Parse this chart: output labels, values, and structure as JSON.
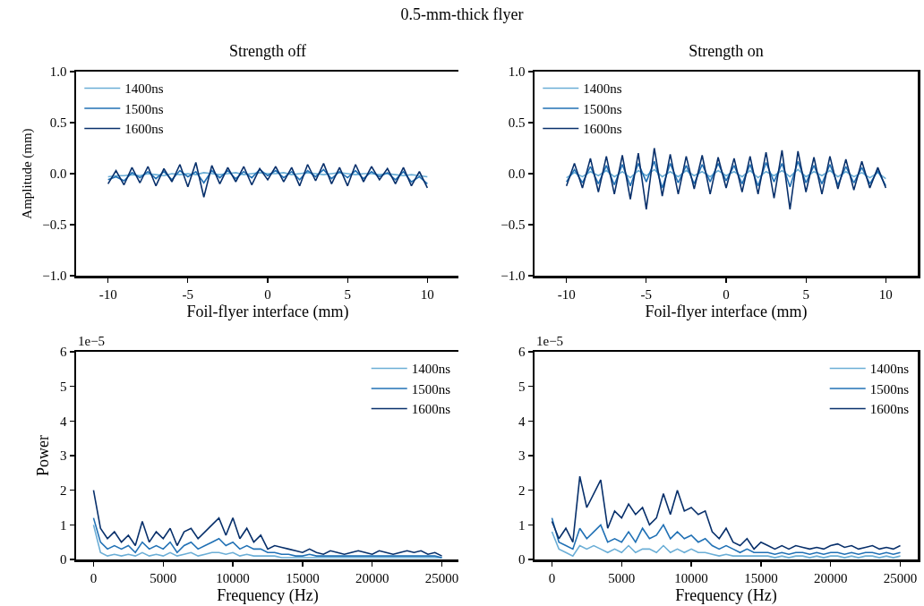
{
  "chart_data": [
    {
      "type": "line",
      "title": "Strength off",
      "subtitle": "0.5-mm-thick flyer",
      "xlabel": "Foil-flyer interface (mm)",
      "ylabel": "Amplitude (mm)",
      "xlim": [
        -12,
        12
      ],
      "xticks": [
        -10,
        -5,
        0,
        5,
        10
      ],
      "ylim": [
        -1,
        1
      ],
      "yticks": [
        {
          "value": -1,
          "label": "−1.0"
        },
        {
          "value": -0.5,
          "label": "−0.5"
        },
        {
          "value": 0,
          "label": "0.0"
        },
        {
          "value": 0.5,
          "label": "0.5"
        },
        {
          "value": 1,
          "label": "1.0"
        }
      ],
      "grid": false,
      "legend": "top left",
      "x": [
        -10,
        -9.5,
        -9,
        -8.5,
        -8,
        -7.5,
        -7,
        -6.5,
        -6,
        -5.5,
        -5,
        -4.5,
        -4,
        -3.5,
        -3,
        -2.5,
        -2,
        -1.5,
        -1,
        -0.5,
        0,
        0.5,
        1,
        1.5,
        2,
        2.5,
        3,
        3.5,
        4,
        4.5,
        5,
        5.5,
        6,
        6.5,
        7,
        7.5,
        8,
        8.5,
        9,
        9.5,
        10
      ],
      "series": [
        {
          "name": "1400ns",
          "color": "#6baed6",
          "values": [
            -0.03,
            -0.02,
            -0.02,
            -0.01,
            -0.02,
            0,
            -0.01,
            -0.02,
            0,
            -0.01,
            0,
            -0.01,
            0.01,
            0,
            -0.01,
            0,
            0.01,
            -0.01,
            0,
            0.01,
            0,
            0,
            0.01,
            -0.01,
            0,
            0.01,
            0,
            -0.01,
            0,
            0.01,
            0,
            -0.01,
            0,
            0,
            -0.01,
            0,
            -0.01,
            -0.02,
            -0.01,
            -0.02,
            -0.03
          ]
        },
        {
          "name": "1500ns",
          "color": "#2171b5",
          "values": [
            -0.06,
            -0.03,
            -0.07,
            0.01,
            -0.04,
            0.02,
            -0.05,
            0.02,
            -0.06,
            0.03,
            -0.03,
            0.02,
            -0.09,
            0.03,
            -0.04,
            0.03,
            -0.05,
            0.02,
            -0.04,
            0.04,
            -0.02,
            0.03,
            -0.04,
            0.02,
            -0.06,
            0.03,
            -0.03,
            0.04,
            -0.05,
            0.02,
            -0.04,
            0.03,
            -0.05,
            0.02,
            -0.03,
            0.01,
            -0.06,
            0.02,
            -0.08,
            -0.03,
            -0.1
          ]
        },
        {
          "name": "1600ns",
          "color": "#08306b",
          "values": [
            -0.1,
            0.03,
            -0.11,
            0.06,
            -0.09,
            0.07,
            -0.12,
            0.05,
            -0.08,
            0.09,
            -0.13,
            0.11,
            -0.23,
            0.08,
            -0.1,
            0.06,
            -0.08,
            0.07,
            -0.11,
            0.05,
            -0.06,
            0.07,
            -0.08,
            0.06,
            -0.12,
            0.09,
            -0.07,
            0.1,
            -0.1,
            0.06,
            -0.12,
            0.09,
            -0.08,
            0.07,
            -0.06,
            0.05,
            -0.1,
            0.06,
            -0.12,
            0.02,
            -0.14
          ]
        }
      ]
    },
    {
      "type": "line",
      "title": "Strength on",
      "xlabel": "Foil-flyer interface (mm)",
      "xlim": [
        -12,
        12
      ],
      "xticks": [
        -10,
        -5,
        0,
        5,
        10
      ],
      "ylim": [
        -1,
        1
      ],
      "yticks": [
        {
          "value": -1,
          "label": "−1.0"
        },
        {
          "value": -0.5,
          "label": "−0.5"
        },
        {
          "value": 0,
          "label": "0.0"
        },
        {
          "value": 0.5,
          "label": "0.5"
        },
        {
          "value": 1,
          "label": "1.0"
        }
      ],
      "grid": false,
      "legend": "top left",
      "x": [
        -10,
        -9.5,
        -9,
        -8.5,
        -8,
        -7.5,
        -7,
        -6.5,
        -6,
        -5.5,
        -5,
        -4.5,
        -4,
        -3.5,
        -3,
        -2.5,
        -2,
        -1.5,
        -1,
        -0.5,
        0,
        0.5,
        1,
        1.5,
        2,
        2.5,
        3,
        3.5,
        4,
        4.5,
        5,
        5.5,
        6,
        6.5,
        7,
        7.5,
        8,
        8.5,
        9,
        9.5,
        10
      ],
      "series": [
        {
          "name": "1400ns",
          "color": "#6baed6",
          "values": [
            -0.04,
            0.01,
            -0.03,
            0.02,
            -0.02,
            0.03,
            -0.03,
            0.02,
            -0.04,
            0.03,
            -0.02,
            0.04,
            -0.03,
            0.02,
            -0.03,
            0.03,
            -0.02,
            0.02,
            -0.03,
            0.03,
            -0.02,
            0.02,
            -0.03,
            0.03,
            -0.04,
            0.02,
            -0.02,
            0.03,
            -0.03,
            0.04,
            -0.03,
            0.02,
            -0.02,
            0.03,
            -0.03,
            0.02,
            -0.03,
            0.01,
            -0.04,
            0.01,
            -0.05
          ]
        },
        {
          "name": "1500ns",
          "color": "#2171b5",
          "values": [
            -0.08,
            0.04,
            -0.09,
            0.07,
            -0.1,
            0.08,
            -0.11,
            0.09,
            -0.12,
            0.1,
            -0.08,
            0.12,
            -0.14,
            0.1,
            -0.09,
            0.08,
            -0.1,
            0.09,
            -0.08,
            0.1,
            -0.07,
            0.08,
            -0.1,
            0.09,
            -0.12,
            0.11,
            -0.08,
            0.1,
            -0.13,
            0.12,
            -0.09,
            0.08,
            -0.1,
            0.09,
            -0.11,
            0.07,
            -0.09,
            0.06,
            -0.1,
            0.03,
            -0.12
          ]
        },
        {
          "name": "1600ns",
          "color": "#08306b",
          "values": [
            -0.12,
            0.1,
            -0.14,
            0.15,
            -0.18,
            0.17,
            -0.2,
            0.18,
            -0.25,
            0.2,
            -0.35,
            0.25,
            -0.22,
            0.19,
            -0.2,
            0.17,
            -0.15,
            0.18,
            -0.2,
            0.16,
            -0.14,
            0.15,
            -0.18,
            0.17,
            -0.2,
            0.21,
            -0.24,
            0.23,
            -0.35,
            0.22,
            -0.18,
            0.16,
            -0.2,
            0.17,
            -0.15,
            0.14,
            -0.16,
            0.12,
            -0.14,
            0.06,
            -0.14
          ]
        }
      ]
    },
    {
      "type": "line",
      "xlabel": "Frequency (Hz)",
      "ylabel": "Power",
      "annotations": [
        "1e−5"
      ],
      "xlim": [
        -1250,
        26250
      ],
      "xticks": [
        0,
        5000,
        10000,
        15000,
        20000,
        25000
      ],
      "ylim": [
        0,
        6
      ],
      "yticks": [
        0,
        1,
        2,
        3,
        4,
        5,
        6
      ],
      "grid": false,
      "legend": "top right",
      "x": [
        0,
        500,
        1000,
        1500,
        2000,
        2500,
        3000,
        3500,
        4000,
        4500,
        5000,
        5500,
        6000,
        6500,
        7000,
        7500,
        8000,
        8500,
        9000,
        9500,
        10000,
        10500,
        11000,
        11500,
        12000,
        12500,
        13000,
        13500,
        14000,
        14500,
        15000,
        15500,
        16000,
        16500,
        17000,
        17500,
        18000,
        18500,
        19000,
        19500,
        20000,
        20500,
        21000,
        21500,
        22000,
        22500,
        23000,
        23500,
        24000,
        24500,
        25000
      ],
      "series": [
        {
          "name": "1400ns",
          "color": "#6baed6",
          "values": [
            1.0,
            0.2,
            0.1,
            0.15,
            0.1,
            0.15,
            0.1,
            0.2,
            0.1,
            0.15,
            0.1,
            0.2,
            0.1,
            0.15,
            0.2,
            0.1,
            0.15,
            0.2,
            0.2,
            0.15,
            0.2,
            0.1,
            0.15,
            0.1,
            0.1,
            0.1,
            0.1,
            0.05,
            0.05,
            0.05,
            0.05,
            0.05,
            0.05,
            0.05,
            0.05,
            0.05,
            0.05,
            0.05,
            0.05,
            0.05,
            0.05,
            0.05,
            0.05,
            0.05,
            0.05,
            0.05,
            0.05,
            0.05,
            0.05,
            0.05,
            0.05
          ]
        },
        {
          "name": "1500ns",
          "color": "#2171b5",
          "values": [
            1.2,
            0.5,
            0.3,
            0.4,
            0.3,
            0.4,
            0.2,
            0.5,
            0.3,
            0.4,
            0.3,
            0.5,
            0.2,
            0.4,
            0.5,
            0.3,
            0.4,
            0.5,
            0.6,
            0.4,
            0.5,
            0.3,
            0.4,
            0.3,
            0.3,
            0.2,
            0.2,
            0.15,
            0.15,
            0.1,
            0.1,
            0.15,
            0.1,
            0.1,
            0.1,
            0.1,
            0.1,
            0.1,
            0.1,
            0.1,
            0.1,
            0.1,
            0.1,
            0.1,
            0.1,
            0.1,
            0.1,
            0.1,
            0.1,
            0.1,
            0.05
          ]
        },
        {
          "name": "1600ns",
          "color": "#08306b",
          "values": [
            2.0,
            0.9,
            0.6,
            0.8,
            0.5,
            0.7,
            0.4,
            1.1,
            0.5,
            0.8,
            0.6,
            0.9,
            0.4,
            0.8,
            0.9,
            0.6,
            0.8,
            1.0,
            1.2,
            0.7,
            1.2,
            0.6,
            0.9,
            0.5,
            0.7,
            0.3,
            0.4,
            0.35,
            0.3,
            0.25,
            0.2,
            0.3,
            0.2,
            0.15,
            0.25,
            0.2,
            0.15,
            0.2,
            0.25,
            0.2,
            0.15,
            0.25,
            0.2,
            0.15,
            0.2,
            0.25,
            0.2,
            0.25,
            0.15,
            0.2,
            0.1
          ]
        }
      ]
    },
    {
      "type": "line",
      "xlabel": "Frequency (Hz)",
      "annotations": [
        "1e−5"
      ],
      "xlim": [
        -1250,
        26250
      ],
      "xticks": [
        0,
        5000,
        10000,
        15000,
        20000,
        25000
      ],
      "ylim": [
        0,
        6
      ],
      "yticks": [
        0,
        1,
        2,
        3,
        4,
        5,
        6
      ],
      "grid": false,
      "legend": "top right",
      "x": [
        0,
        500,
        1000,
        1500,
        2000,
        2500,
        3000,
        3500,
        4000,
        4500,
        5000,
        5500,
        6000,
        6500,
        7000,
        7500,
        8000,
        8500,
        9000,
        9500,
        10000,
        10500,
        11000,
        11500,
        12000,
        12500,
        13000,
        13500,
        14000,
        14500,
        15000,
        15500,
        16000,
        16500,
        17000,
        17500,
        18000,
        18500,
        19000,
        19500,
        20000,
        20500,
        21000,
        21500,
        22000,
        22500,
        23000,
        23500,
        24000,
        24500,
        25000
      ],
      "series": [
        {
          "name": "1400ns",
          "color": "#6baed6",
          "values": [
            0.8,
            0.3,
            0.2,
            0.1,
            0.4,
            0.3,
            0.4,
            0.3,
            0.2,
            0.3,
            0.2,
            0.4,
            0.2,
            0.3,
            0.3,
            0.2,
            0.4,
            0.2,
            0.3,
            0.2,
            0.3,
            0.2,
            0.2,
            0.15,
            0.1,
            0.15,
            0.1,
            0.1,
            0.1,
            0.1,
            0.1,
            0.1,
            0.05,
            0.1,
            0.05,
            0.1,
            0.1,
            0.05,
            0.1,
            0.05,
            0.1,
            0.1,
            0.05,
            0.1,
            0.05,
            0.1,
            0.1,
            0.05,
            0.1,
            0.05,
            0.1
          ]
        },
        {
          "name": "1500ns",
          "color": "#2171b5",
          "values": [
            1.2,
            0.5,
            0.4,
            0.3,
            0.9,
            0.6,
            0.8,
            1.0,
            0.5,
            0.6,
            0.5,
            0.8,
            0.5,
            0.9,
            0.6,
            0.7,
            1.0,
            0.6,
            0.8,
            0.6,
            0.7,
            0.5,
            0.6,
            0.4,
            0.3,
            0.4,
            0.3,
            0.2,
            0.3,
            0.2,
            0.2,
            0.2,
            0.15,
            0.2,
            0.15,
            0.2,
            0.2,
            0.15,
            0.2,
            0.15,
            0.2,
            0.2,
            0.15,
            0.2,
            0.15,
            0.2,
            0.2,
            0.15,
            0.2,
            0.15,
            0.2
          ]
        },
        {
          "name": "1600ns",
          "color": "#08306b",
          "values": [
            1.1,
            0.6,
            0.9,
            0.5,
            2.4,
            1.5,
            1.9,
            2.3,
            0.9,
            1.4,
            1.2,
            1.6,
            1.3,
            1.5,
            1.0,
            1.2,
            1.9,
            1.3,
            2.0,
            1.4,
            1.5,
            1.3,
            1.4,
            0.8,
            0.6,
            0.9,
            0.5,
            0.4,
            0.6,
            0.3,
            0.5,
            0.4,
            0.3,
            0.4,
            0.3,
            0.4,
            0.35,
            0.3,
            0.35,
            0.3,
            0.4,
            0.45,
            0.35,
            0.4,
            0.3,
            0.35,
            0.4,
            0.3,
            0.35,
            0.3,
            0.4
          ]
        }
      ]
    }
  ]
}
